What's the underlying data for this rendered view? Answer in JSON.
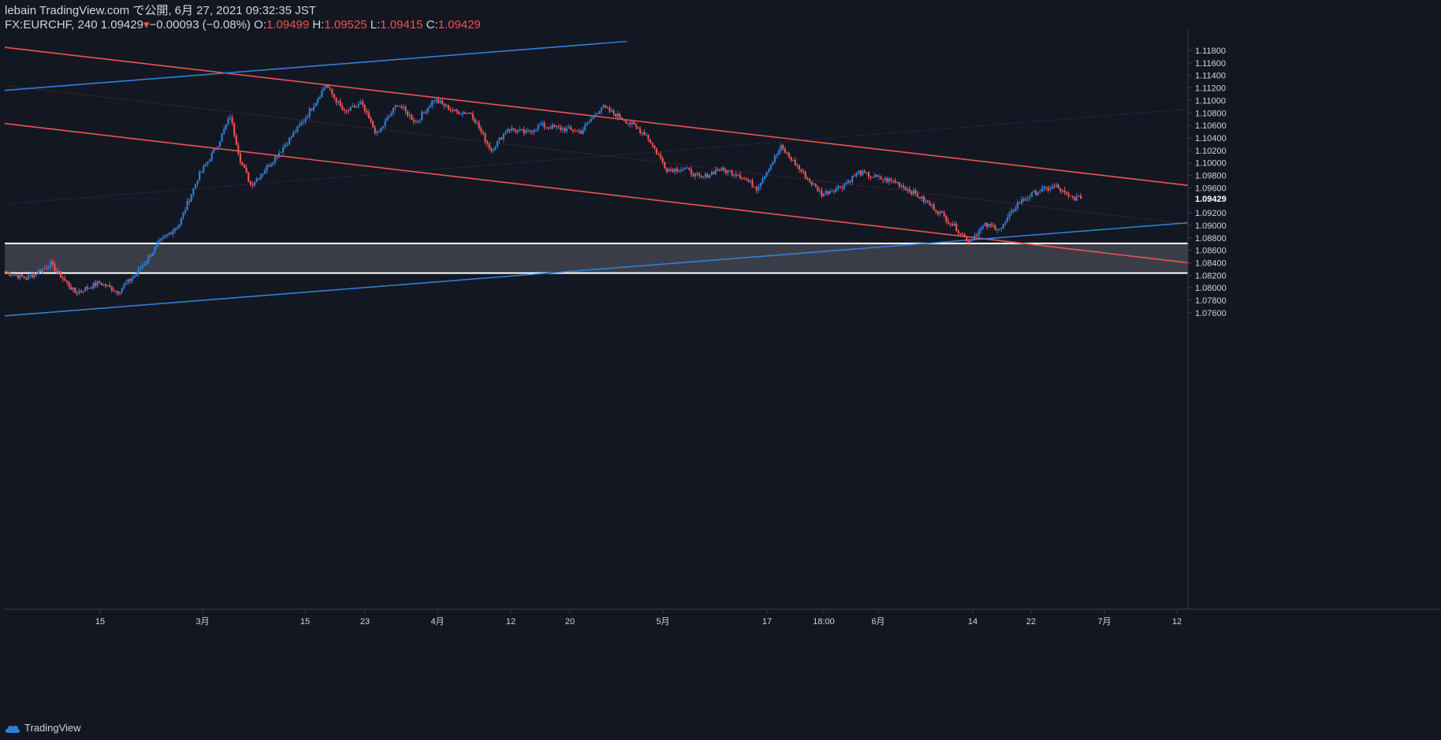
{
  "header": {
    "line1": "lebain TradingView.com で公開, 6月 27, 2021 09:32:35 JST",
    "symbol": "FX:EURCHF, 240",
    "last": "1.09429",
    "change": "−0.00093 (−0.08%)",
    "o_label": "O:",
    "o_value": "1.09499",
    "h_label": "H:",
    "h_value": "1.09525",
    "l_label": "L:",
    "l_value": "1.09415",
    "c_label": "C:",
    "c_value": "1.09429"
  },
  "footer": {
    "brand": "TradingView"
  },
  "colors": {
    "background": "#131722",
    "up": "#2f7fd8",
    "down": "#ef5350",
    "text": "#d1d4dc",
    "grid": "#363c4e",
    "zone": "#3a3d47"
  },
  "chart_data": {
    "type": "candlestick",
    "symbol": "FX:EURCHF",
    "interval": "240",
    "y_ticks": [
      "1.11800",
      "1.11600",
      "1.11400",
      "1.11200",
      "1.11000",
      "1.10800",
      "1.10600",
      "1.10400",
      "1.10200",
      "1.10000",
      "1.09800",
      "1.09600",
      "1.09200",
      "1.09000",
      "1.08800",
      "1.08600",
      "1.08400",
      "1.08200",
      "1.08000",
      "1.07800",
      "1.07600"
    ],
    "last_price_label": "1.09429",
    "x_ticks": [
      "15",
      "3月",
      "15",
      "23",
      "4月",
      "12",
      "20",
      "5月",
      "17",
      "18:00",
      "6月",
      "14",
      "22",
      "7月",
      "12"
    ],
    "ylim": [
      1.0749,
      1.1199
    ],
    "last_price": 1.09429,
    "close_path": [
      {
        "bar": 0,
        "close": 1.0825
      },
      {
        "bar": 10,
        "close": 1.0815
      },
      {
        "bar": 22,
        "close": 1.0838
      },
      {
        "bar": 34,
        "close": 1.0792
      },
      {
        "bar": 46,
        "close": 1.0808
      },
      {
        "bar": 55,
        "close": 1.0794
      },
      {
        "bar": 64,
        "close": 1.0822
      },
      {
        "bar": 75,
        "close": 1.0872
      },
      {
        "bar": 85,
        "close": 1.0902
      },
      {
        "bar": 94,
        "close": 1.0975
      },
      {
        "bar": 104,
        "close": 1.103
      },
      {
        "bar": 110,
        "close": 1.1075
      },
      {
        "bar": 115,
        "close": 1.1005
      },
      {
        "bar": 120,
        "close": 1.0965
      },
      {
        "bar": 126,
        "close": 1.0985
      },
      {
        "bar": 136,
        "close": 1.1025
      },
      {
        "bar": 146,
        "close": 1.1068
      },
      {
        "bar": 157,
        "close": 1.1125
      },
      {
        "bar": 166,
        "close": 1.108
      },
      {
        "bar": 174,
        "close": 1.1095
      },
      {
        "bar": 182,
        "close": 1.1045
      },
      {
        "bar": 192,
        "close": 1.1095
      },
      {
        "bar": 201,
        "close": 1.1065
      },
      {
        "bar": 210,
        "close": 1.1102
      },
      {
        "bar": 220,
        "close": 1.1082
      },
      {
        "bar": 228,
        "close": 1.108
      },
      {
        "bar": 238,
        "close": 1.102
      },
      {
        "bar": 246,
        "close": 1.1055
      },
      {
        "bar": 255,
        "close": 1.1048
      },
      {
        "bar": 262,
        "close": 1.106
      },
      {
        "bar": 272,
        "close": 1.1055
      },
      {
        "bar": 282,
        "close": 1.105
      },
      {
        "bar": 292,
        "close": 1.109
      },
      {
        "bar": 303,
        "close": 1.107
      },
      {
        "bar": 314,
        "close": 1.1045
      },
      {
        "bar": 324,
        "close": 1.099
      },
      {
        "bar": 333,
        "close": 1.099
      },
      {
        "bar": 341,
        "close": 1.0975
      },
      {
        "bar": 349,
        "close": 1.099
      },
      {
        "bar": 359,
        "close": 1.0982
      },
      {
        "bar": 368,
        "close": 1.096
      },
      {
        "bar": 380,
        "close": 1.1025
      },
      {
        "bar": 393,
        "close": 1.0975
      },
      {
        "bar": 400,
        "close": 1.095
      },
      {
        "bar": 410,
        "close": 1.0963
      },
      {
        "bar": 418,
        "close": 1.0985
      },
      {
        "bar": 428,
        "close": 1.0975
      },
      {
        "bar": 436,
        "close": 1.097
      },
      {
        "bar": 446,
        "close": 1.095
      },
      {
        "bar": 458,
        "close": 1.092
      },
      {
        "bar": 466,
        "close": 1.0895
      },
      {
        "bar": 472,
        "close": 1.0875
      },
      {
        "bar": 480,
        "close": 1.09
      },
      {
        "bar": 488,
        "close": 1.0895
      },
      {
        "bar": 496,
        "close": 1.0935
      },
      {
        "bar": 506,
        "close": 1.0955
      },
      {
        "bar": 515,
        "close": 1.0962
      },
      {
        "bar": 521,
        "close": 1.0945
      },
      {
        "bar": 527,
        "close": 1.09429
      }
    ],
    "zone": {
      "from": 1.08235,
      "to": 1.0871
    },
    "channel_lines": [
      {
        "color": "down",
        "style": "solid",
        "from": {
          "bar": 0,
          "price": 1.1185
        },
        "to": {
          "bar": 580,
          "price": 1.0964
        }
      },
      {
        "color": "down",
        "style": "solid",
        "from": {
          "bar": 0,
          "price": 1.1063
        },
        "to": {
          "bar": 580,
          "price": 1.084
        }
      },
      {
        "color": "down",
        "style": "dotted",
        "from": {
          "bar": 0,
          "price": 1.1124
        },
        "to": {
          "bar": 580,
          "price": 1.0902
        }
      },
      {
        "color": "up",
        "style": "solid",
        "from": {
          "bar": 0,
          "price": 1.1116
        },
        "to": {
          "bar": 305,
          "price": 1.11945
        }
      },
      {
        "color": "up",
        "style": "solid",
        "from": {
          "bar": 0,
          "price": 1.0755
        },
        "to": {
          "bar": 580,
          "price": 1.0904
        }
      },
      {
        "color": "up",
        "style": "dotted",
        "from": {
          "bar": 0,
          "price": 1.0934
        },
        "to": {
          "bar": 580,
          "price": 1.1086
        }
      }
    ]
  }
}
